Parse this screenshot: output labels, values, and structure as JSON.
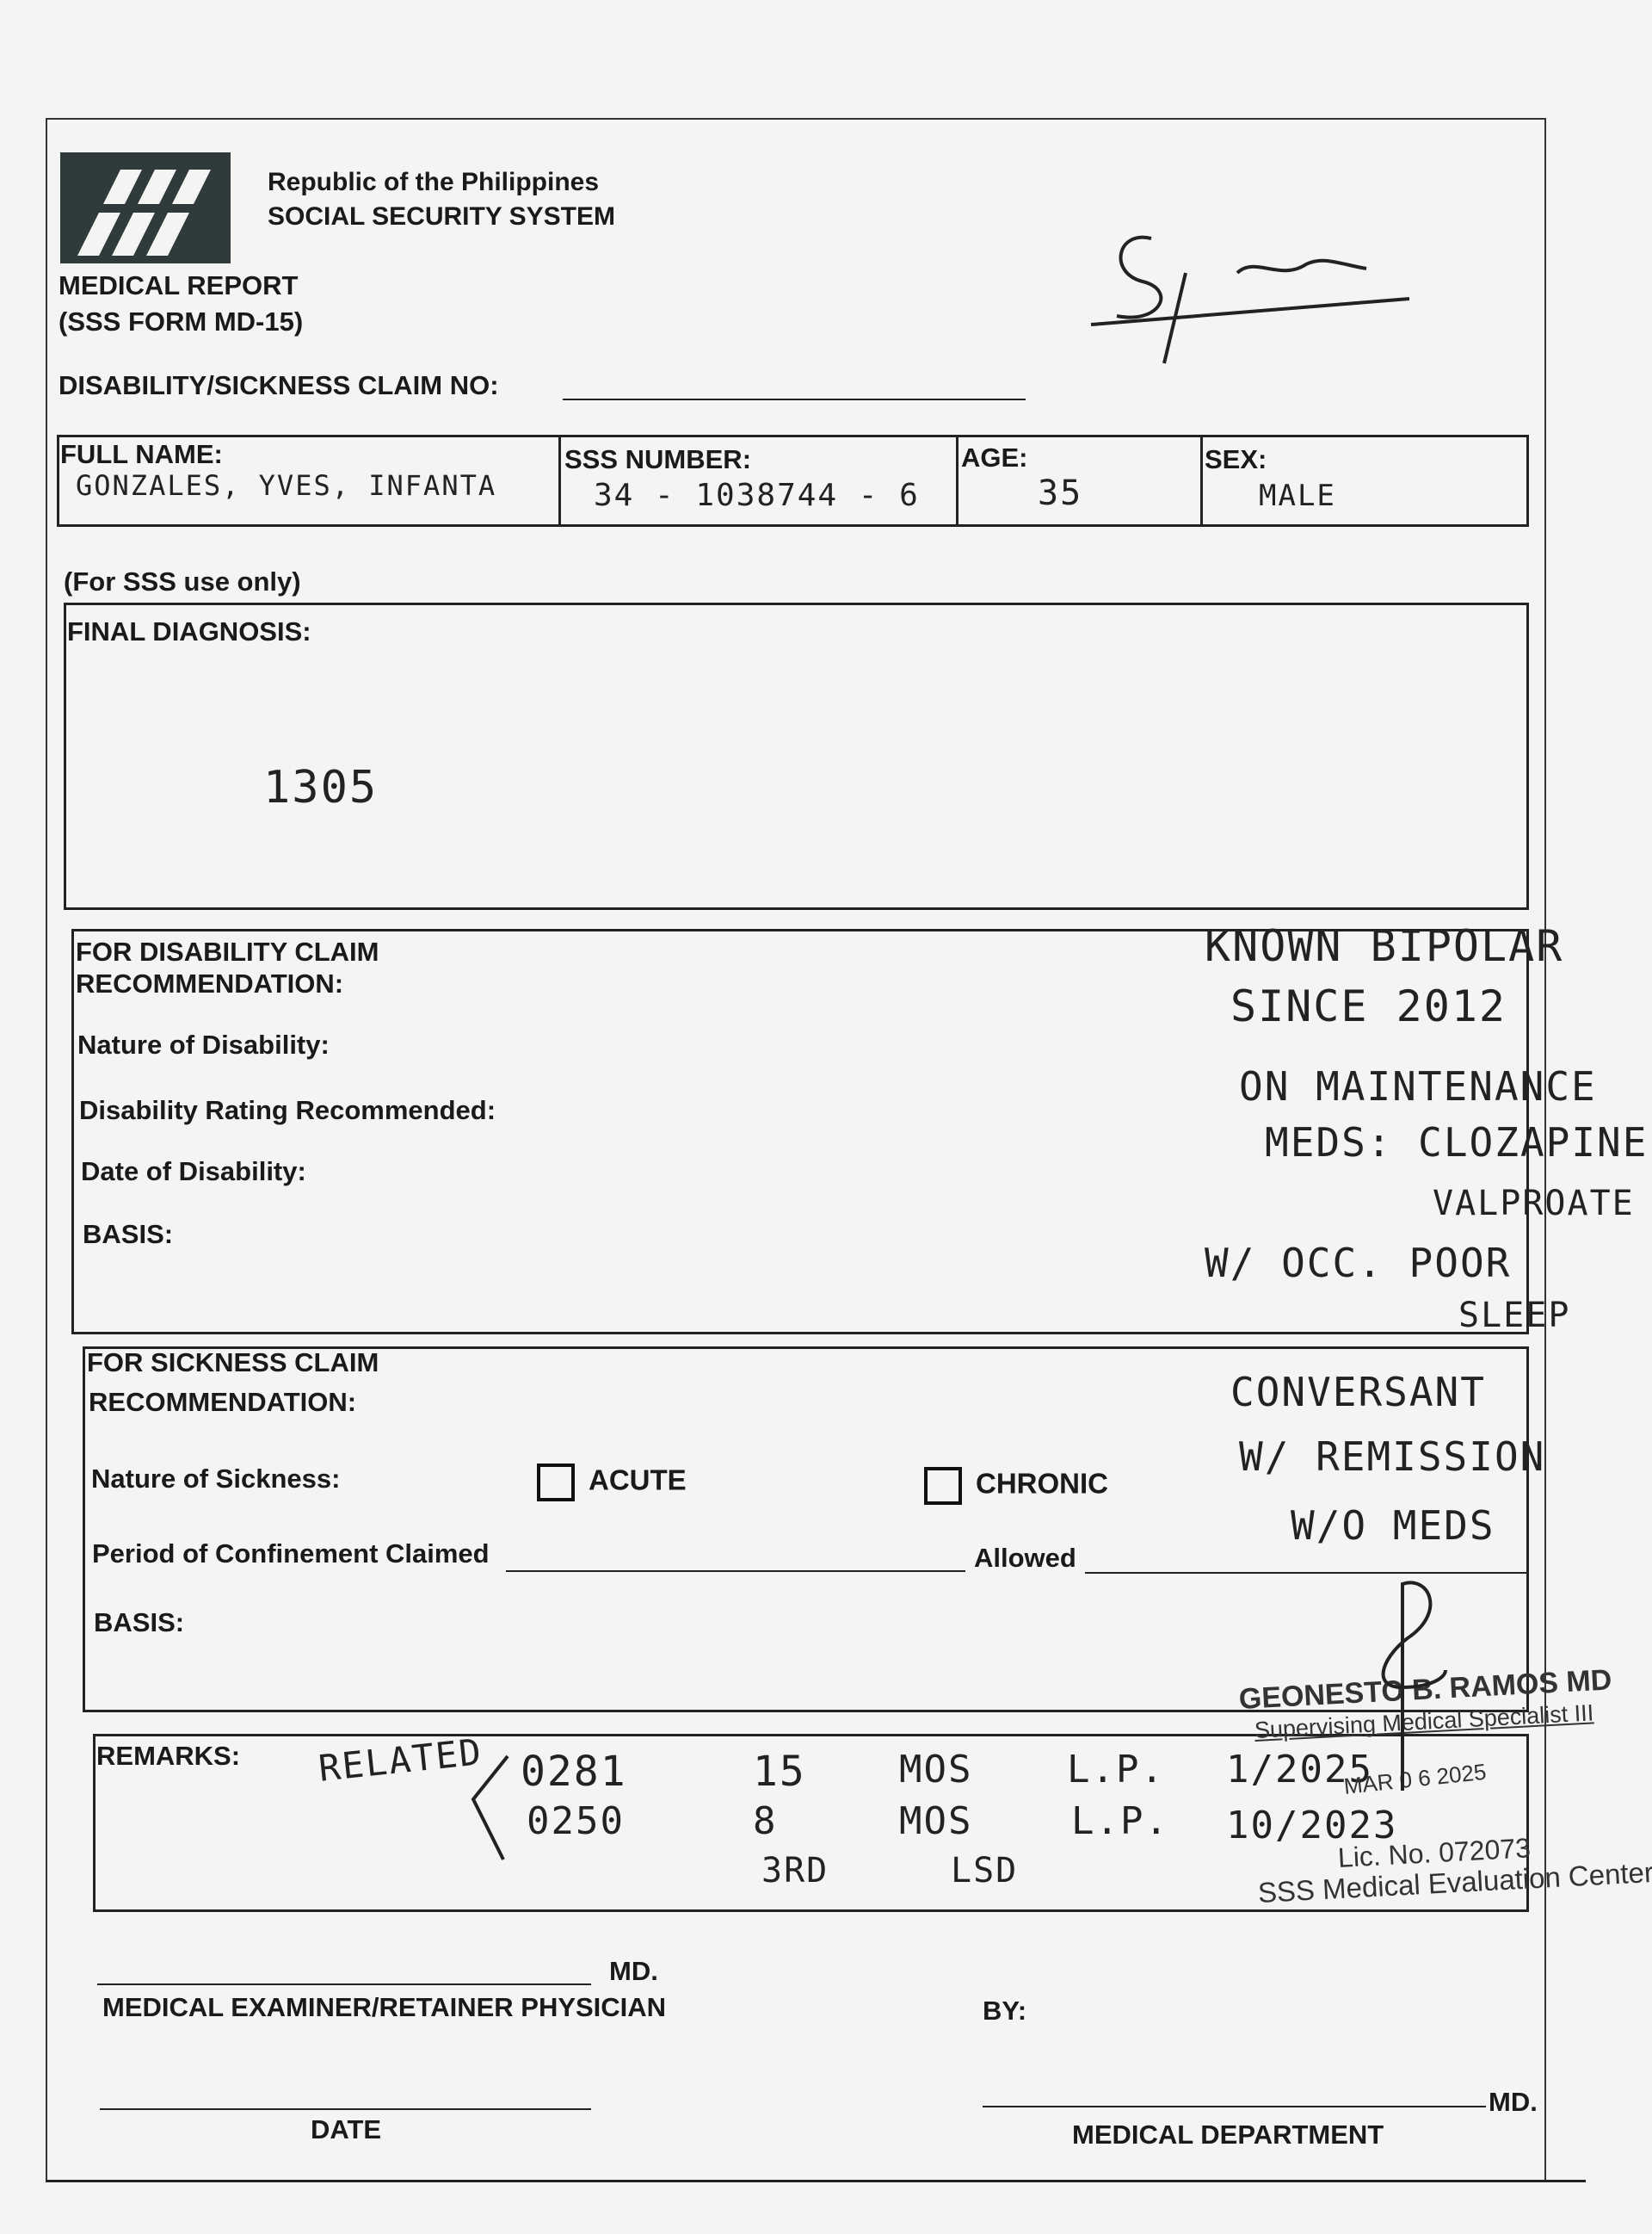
{
  "header": {
    "org_line1": "Republic of the Philippines",
    "org_line2": "SOCIAL SECURITY SYSTEM",
    "form_title": "MEDICAL REPORT",
    "form_code": "(SSS FORM MD-15)",
    "claim_no_label": "DISABILITY/SICKNESS CLAIM NO:",
    "claim_no_value": ""
  },
  "patient": {
    "name_label": "FULL NAME:",
    "name_value": "GONZALES, YVES, INFANTA",
    "sss_label": "SSS NUMBER:",
    "sss_value": "34 - 1038744 - 6",
    "age_label": "AGE:",
    "age_value": "35",
    "sex_label": "SEX:",
    "sex_value": "MALE"
  },
  "sss_use_only": "(For SSS use only)",
  "final_diagnosis": {
    "label": "FINAL DIAGNOSIS:",
    "value": "1305"
  },
  "disability": {
    "title1": "FOR DISABILITY CLAIM",
    "title2": "RECOMMENDATION:",
    "nature_label": "Nature of Disability:",
    "rating_label": "Disability Rating Recommended:",
    "date_label": "Date of Disability:",
    "basis_label": "BASIS:"
  },
  "notes": [
    "KNOWN BIPOLAR",
    "SINCE 2012",
    "ON MAINTENANCE",
    "MEDS: CLOZAPINE",
    "VALPROATE",
    "W/ OCC. POOR",
    "SLEEP",
    "CONVERSANT",
    "W/ REMISSION",
    "W/O MEDS"
  ],
  "sickness": {
    "title1": "FOR SICKNESS CLAIM",
    "title2": "RECOMMENDATION:",
    "nature_label": "Nature of Sickness:",
    "acute_label": "ACUTE",
    "acute_checked": false,
    "chronic_label": "CHRONIC",
    "chronic_checked": false,
    "period_label": "Period of Confinement Claimed",
    "period_value": "",
    "allowed_label": "Allowed",
    "allowed_value": "",
    "basis_label": "BASIS:"
  },
  "remarks": {
    "label": "REMARKS:",
    "related": "RELATED",
    "codes": [
      "0281",
      "0250"
    ],
    "counts": [
      "15",
      "8",
      "3RD"
    ],
    "units": [
      "MOS",
      "MOS",
      "LSD"
    ],
    "lp": [
      "L.P.",
      "L.P."
    ],
    "dates": [
      "1/2025",
      "10/2023"
    ]
  },
  "stamp": {
    "name": "GEONESTO B. RAMOS MD",
    "title": "Supervising Medical Specialist III",
    "date": "MAR 0 6 2025",
    "license": "Lic. No. 072073",
    "center": "SSS Medical Evaluation Center"
  },
  "footer": {
    "md1": "MD.",
    "examiner_label": "MEDICAL EXAMINER/RETAINER PHYSICIAN",
    "by_label": "BY:",
    "date_label": "DATE",
    "md2": "MD.",
    "dept_label": "MEDICAL DEPARTMENT"
  }
}
